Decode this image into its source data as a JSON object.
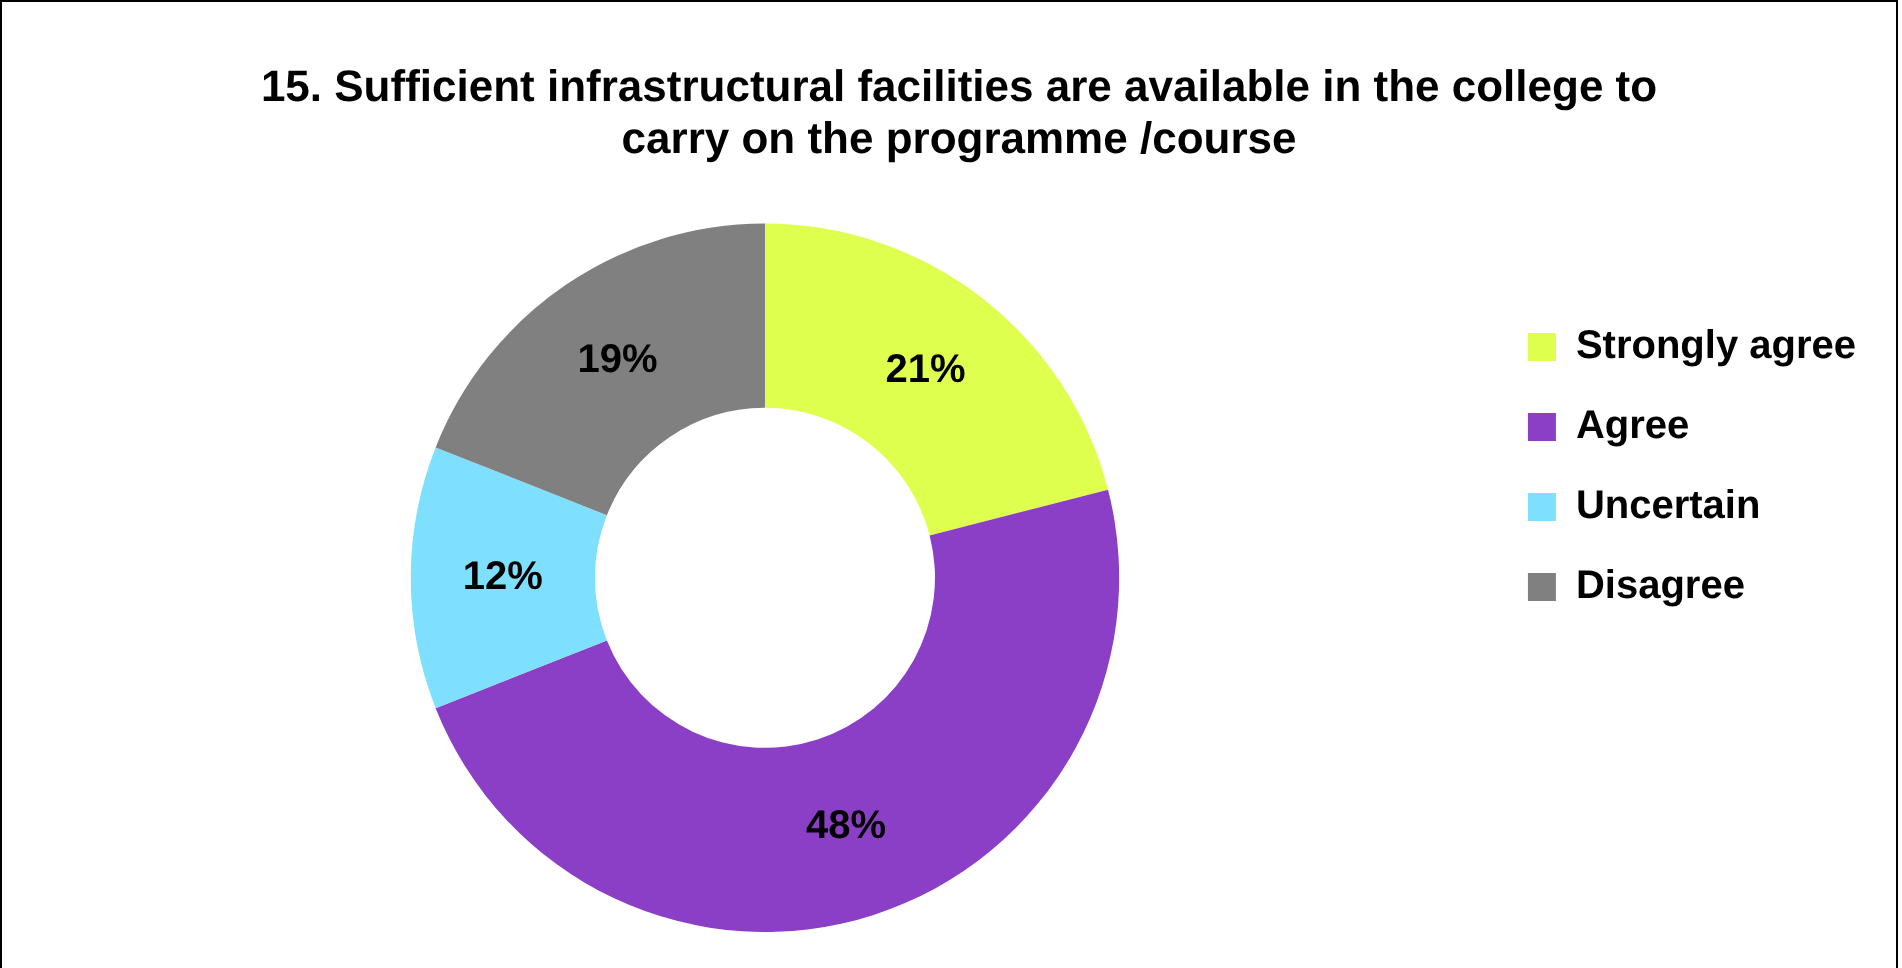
{
  "chart_data": {
    "type": "donut",
    "title": "15. Sufficient infrastructural facilities are available in the college to carry on the programme /course",
    "categories": [
      "Strongly agree",
      "Agree",
      "Uncertain",
      "Disagree"
    ],
    "values": [
      21,
      48,
      12,
      19
    ],
    "colors": [
      "#dfff4f",
      "#8b3fc7",
      "#7fdfff",
      "#808080"
    ],
    "value_labels": [
      "21%",
      "48%",
      "12%",
      "19%"
    ],
    "legend": "right"
  }
}
